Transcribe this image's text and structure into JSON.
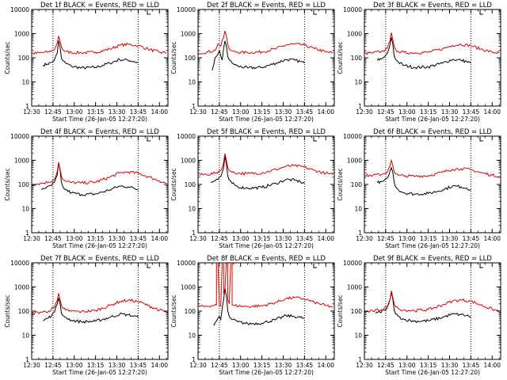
{
  "figure": {
    "bg": "#ffffff",
    "ink": "#000000"
  },
  "chart_data": {
    "type": "line",
    "scale_y": "log",
    "grid": false,
    "ylim": [
      1,
      10000
    ],
    "ytick_labels": [
      "1",
      "10",
      "100",
      "1000",
      "10000"
    ],
    "xtick_labels": [
      "12:30",
      "12:45",
      "13:00",
      "13:15",
      "13:30",
      "13:45",
      "14:00"
    ],
    "xlabel": "Start Time (26-Jan-05 12:27:20)",
    "ylabel": "Counts/sec",
    "x_start": "12:30",
    "x_end": "14:06",
    "black_color": "#000000",
    "red_color": "#dd0000",
    "dotted_markers_at": [
      "12:45",
      "13:45"
    ],
    "panels": [
      {
        "title": "Det 1f BLACK = Events, RED = LLD",
        "series": [
          {
            "color": "black",
            "x": [
              "12:38",
              "12:41",
              "12:44",
              "12:46",
              "12:48",
              "12:49",
              "12:50",
              "12:51",
              "12:52",
              "12:54",
              "12:58",
              "13:05",
              "13:15",
              "13:25",
              "13:32",
              "13:38",
              "13:42",
              "13:45"
            ],
            "y": [
              50,
              55,
              65,
              80,
              160,
              520,
              280,
              95,
              75,
              60,
              45,
              38,
              40,
              60,
              85,
              80,
              70,
              62
            ]
          },
          {
            "color": "red",
            "x": [
              "12:30",
              "12:36",
              "12:42",
              "12:46",
              "12:48",
              "12:49",
              "12:50",
              "12:51",
              "12:52",
              "12:54",
              "12:58",
              "13:05",
              "13:15",
              "13:25",
              "13:32",
              "13:38",
              "13:45",
              "13:52",
              "14:00",
              "14:05"
            ],
            "y": [
              150,
              160,
              175,
              220,
              420,
              800,
              520,
              280,
              210,
              180,
              165,
              160,
              170,
              230,
              330,
              360,
              320,
              230,
              170,
              160
            ]
          }
        ]
      },
      {
        "title": "Det 2f BLACK = Events, RED = LLD",
        "series": [
          {
            "color": "black",
            "x": [
              "12:40",
              "12:42",
              "12:44",
              "12:45",
              "12:46",
              "12:47",
              "12:48",
              "12:49",
              "12:50",
              "12:51",
              "12:52",
              "12:54",
              "12:58",
              "13:05",
              "13:15",
              "13:25",
              "13:32",
              "13:38",
              "13:42",
              "13:45"
            ],
            "y": [
              30,
              100,
              140,
              200,
              120,
              80,
              250,
              500,
              300,
              110,
              80,
              60,
              45,
              38,
              40,
              60,
              85,
              80,
              70,
              60
            ]
          },
          {
            "color": "red",
            "x": [
              "12:30",
              "12:36",
              "12:42",
              "12:44",
              "12:46",
              "12:48",
              "12:49",
              "12:50",
              "12:51",
              "12:52",
              "12:54",
              "12:58",
              "13:05",
              "13:15",
              "13:25",
              "13:32",
              "13:38",
              "13:45",
              "13:52",
              "14:00",
              "14:05"
            ],
            "y": [
              160,
              170,
              200,
              380,
              300,
              700,
              1300,
              800,
              350,
              230,
              190,
              170,
              165,
              175,
              240,
              340,
              370,
              330,
              240,
              175,
              160
            ]
          }
        ]
      },
      {
        "title": "Det 3f BLACK = Events, RED = LLD",
        "series": [
          {
            "color": "black",
            "x": [
              "12:39",
              "12:42",
              "12:44",
              "12:46",
              "12:48",
              "12:49",
              "12:50",
              "12:51",
              "12:52",
              "12:54",
              "12:58",
              "13:05",
              "13:15",
              "13:25",
              "13:32",
              "13:38",
              "13:42",
              "13:45"
            ],
            "y": [
              80,
              90,
              110,
              150,
              350,
              700,
              380,
              120,
              85,
              65,
              48,
              40,
              42,
              60,
              85,
              80,
              70,
              60
            ]
          },
          {
            "color": "red",
            "x": [
              "12:30",
              "12:36",
              "12:42",
              "12:46",
              "12:48",
              "12:49",
              "12:50",
              "12:51",
              "12:52",
              "12:54",
              "12:58",
              "13:05",
              "13:15",
              "13:25",
              "13:32",
              "13:38",
              "13:45",
              "13:52",
              "14:00",
              "14:05"
            ],
            "y": [
              150,
              160,
              180,
              240,
              500,
              1100,
              600,
              300,
              220,
              185,
              165,
              160,
              170,
              230,
              330,
              360,
              320,
              230,
              170,
              160
            ]
          }
        ]
      },
      {
        "title": "Det 4f BLACK = Events, RED = LLD",
        "series": [
          {
            "color": "black",
            "x": [
              "12:37",
              "12:40",
              "12:44",
              "12:46",
              "12:48",
              "12:49",
              "12:50",
              "12:51",
              "12:52",
              "12:54",
              "12:58",
              "13:05",
              "13:15",
              "13:25",
              "13:32",
              "13:38",
              "13:42",
              "13:45"
            ],
            "y": [
              60,
              70,
              90,
              120,
              250,
              800,
              400,
              120,
              80,
              60,
              45,
              38,
              40,
              60,
              85,
              80,
              70,
              60
            ]
          },
          {
            "color": "red",
            "x": [
              "12:30",
              "12:36",
              "12:42",
              "12:46",
              "12:48",
              "12:49",
              "12:50",
              "12:51",
              "12:52",
              "12:54",
              "12:58",
              "13:05",
              "13:15",
              "13:25",
              "13:32",
              "13:38",
              "13:45",
              "13:52",
              "14:00",
              "14:05"
            ],
            "y": [
              100,
              110,
              125,
              160,
              350,
              850,
              450,
              220,
              160,
              135,
              120,
              115,
              125,
              200,
              300,
              330,
              290,
              210,
              140,
              110
            ]
          }
        ]
      },
      {
        "title": "Det 5f BLACK = Events, RED = LLD",
        "series": [
          {
            "color": "black",
            "x": [
              "12:39",
              "12:42",
              "12:44",
              "12:46",
              "12:48",
              "12:49",
              "12:50",
              "12:51",
              "12:52",
              "12:54",
              "12:58",
              "13:05",
              "13:15",
              "13:25",
              "13:32",
              "13:38",
              "13:42",
              "13:45"
            ],
            "y": [
              120,
              140,
              160,
              210,
              500,
              1500,
              700,
              220,
              150,
              110,
              80,
              70,
              75,
              110,
              160,
              150,
              130,
              110
            ]
          },
          {
            "color": "red",
            "x": [
              "12:30",
              "12:36",
              "12:42",
              "12:46",
              "12:48",
              "12:49",
              "12:50",
              "12:51",
              "12:52",
              "12:54",
              "12:58",
              "13:05",
              "13:15",
              "13:25",
              "13:32",
              "13:38",
              "13:45",
              "13:52",
              "14:00",
              "14:05"
            ],
            "y": [
              250,
              260,
              290,
              380,
              850,
              1900,
              1000,
              500,
              370,
              320,
              290,
              280,
              300,
              420,
              560,
              600,
              520,
              380,
              290,
              250
            ]
          }
        ]
      },
      {
        "title": "Det 6f BLACK = Events, RED = LLD",
        "series": [
          {
            "color": "black",
            "x": [
              "12:39",
              "12:42",
              "12:44",
              "12:46",
              "12:48",
              "12:49",
              "12:50",
              "12:51",
              "12:52",
              "12:54",
              "12:58",
              "13:05",
              "13:15",
              "13:25",
              "13:32",
              "13:38",
              "13:42",
              "13:45"
            ],
            "y": [
              120,
              130,
              150,
              180,
              350,
              500,
              330,
              120,
              80,
              60,
              45,
              40,
              42,
              60,
              85,
              80,
              70,
              62
            ]
          },
          {
            "color": "red",
            "x": [
              "12:30",
              "12:36",
              "12:42",
              "12:46",
              "12:48",
              "12:49",
              "12:50",
              "12:51",
              "12:52",
              "12:54",
              "12:58",
              "13:05",
              "13:15",
              "13:25",
              "13:32",
              "13:38",
              "13:45",
              "13:52",
              "14:00",
              "14:05"
            ],
            "y": [
              230,
              240,
              260,
              330,
              600,
              1000,
              620,
              330,
              270,
              240,
              225,
              220,
              230,
              320,
              430,
              450,
              410,
              310,
              240,
              220
            ]
          }
        ]
      },
      {
        "title": "Det 7f BLACK = Events, RED = LLD",
        "series": [
          {
            "color": "black",
            "x": [
              "12:38",
              "12:41",
              "12:44",
              "12:46",
              "12:48",
              "12:49",
              "12:50",
              "12:51",
              "12:52",
              "12:54",
              "12:58",
              "13:05",
              "13:15",
              "13:25",
              "13:32",
              "13:38",
              "13:42",
              "13:45"
            ],
            "y": [
              40,
              50,
              65,
              90,
              200,
              350,
              210,
              80,
              65,
              55,
              42,
              36,
              38,
              55,
              75,
              70,
              62,
              55
            ]
          },
          {
            "color": "red",
            "x": [
              "12:30",
              "12:36",
              "12:42",
              "12:46",
              "12:48",
              "12:49",
              "12:50",
              "12:51",
              "12:52",
              "12:54",
              "12:58",
              "13:05",
              "13:15",
              "13:25",
              "13:32",
              "13:38",
              "13:45",
              "13:52",
              "14:00",
              "14:05"
            ],
            "y": [
              80,
              90,
              100,
              140,
              280,
              550,
              300,
              170,
              130,
              110,
              100,
              95,
              105,
              170,
              250,
              280,
              250,
              170,
              110,
              90
            ]
          }
        ]
      },
      {
        "title": "Det 8f BLACK = Events, RED = LLD",
        "series": [
          {
            "color": "black",
            "x": [
              "12:41",
              "12:43",
              "12:45",
              "12:46",
              "12:48",
              "12:49",
              "12:50",
              "12:51",
              "12:52",
              "12:54",
              "12:58",
              "13:05",
              "13:15",
              "13:25",
              "13:32",
              "13:38",
              "13:42",
              "13:45"
            ],
            "y": [
              25,
              40,
              60,
              45,
              300,
              900,
              400,
              100,
              60,
              45,
              36,
              30,
              32,
              45,
              65,
              60,
              55,
              50
            ]
          },
          {
            "color": "red",
            "x": [
              "12:30",
              "12:36",
              "12:43",
              "12:43",
              "12:44",
              "12:45",
              "12:46",
              "12:47",
              "12:48",
              "12:48",
              "12:49",
              "12:50",
              "12:51",
              "12:51",
              "12:52",
              "12:53",
              "12:54",
              "12:54",
              "12:56",
              "13:00",
              "13:05",
              "13:15",
              "13:25",
              "13:32",
              "13:38",
              "13:45",
              "13:52",
              "14:00",
              "14:05"
            ],
            "y": [
              150,
              160,
              180,
              10000,
              10000,
              160,
              160,
              10000,
              10000,
              500,
              900,
              10000,
              10000,
              300,
              200,
              10000,
              10000,
              180,
              170,
              160,
              155,
              165,
              230,
              330,
              360,
              320,
              230,
              170,
              150
            ]
          }
        ]
      },
      {
        "title": "Det 9f BLACK = Events, RED = LLD",
        "series": [
          {
            "color": "black",
            "x": [
              "12:38",
              "12:41",
              "12:44",
              "12:46",
              "12:48",
              "12:49",
              "12:50",
              "12:51",
              "12:52",
              "12:54",
              "12:58",
              "13:05",
              "13:15",
              "13:25",
              "13:32",
              "13:38",
              "13:42",
              "13:45"
            ],
            "y": [
              80,
              90,
              110,
              140,
              300,
              600,
              330,
              110,
              75,
              60,
              45,
              38,
              40,
              55,
              75,
              72,
              65,
              58
            ]
          },
          {
            "color": "red",
            "x": [
              "12:30",
              "12:36",
              "12:42",
              "12:46",
              "12:48",
              "12:49",
              "12:50",
              "12:51",
              "12:52",
              "12:54",
              "12:58",
              "13:05",
              "13:15",
              "13:25",
              "13:32",
              "13:38",
              "13:45",
              "13:52",
              "14:00",
              "14:05"
            ],
            "y": [
              90,
              100,
              115,
              150,
              300,
              700,
              380,
              200,
              150,
              125,
              110,
              105,
              115,
              180,
              260,
              290,
              260,
              180,
              120,
              100
            ]
          }
        ]
      }
    ]
  }
}
